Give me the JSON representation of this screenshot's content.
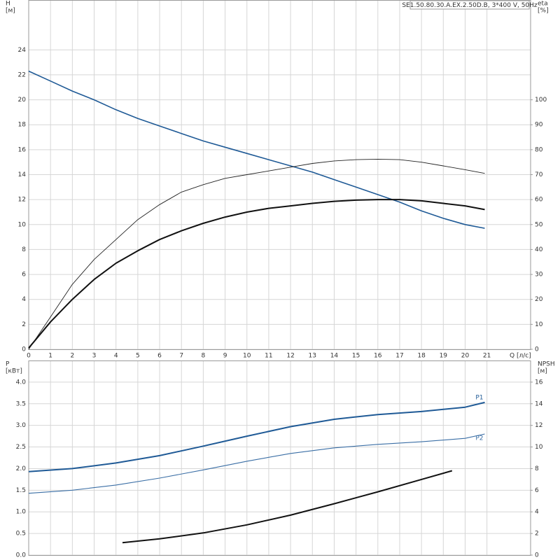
{
  "chart_data": [
    {
      "type": "line",
      "annotation": "SE1.50.80.30.A.EX.2.50D.B, 3*400 V, 50Hz",
      "y_label": "H",
      "y_unit": "[м]",
      "y2_label": "eta",
      "y2_unit": "[%]",
      "x_label": "Q [л/с]",
      "xlim": [
        0,
        23
      ],
      "xticks": [
        0,
        1,
        2,
        3,
        4,
        5,
        6,
        7,
        8,
        9,
        10,
        11,
        12,
        13,
        14,
        15,
        16,
        17,
        18,
        19,
        20,
        21
      ],
      "ylim": [
        0,
        28
      ],
      "yticks": [
        0,
        2,
        4,
        6,
        8,
        10,
        12,
        14,
        16,
        18,
        20,
        22,
        24
      ],
      "y2lim": [
        0,
        140
      ],
      "y2ticks": [
        0,
        10,
        20,
        30,
        40,
        50,
        60,
        70,
        80,
        90,
        100
      ],
      "grid": true,
      "series": [
        {
          "color": "#1f5a96",
          "width": 1.6,
          "x": [
            0,
            1,
            2,
            3,
            4,
            5,
            6,
            7,
            8,
            9,
            10,
            11,
            12,
            13,
            14,
            15,
            16,
            17,
            18,
            19,
            20,
            20.9
          ],
          "values": [
            22.3,
            21.5,
            20.7,
            20.0,
            19.2,
            18.5,
            17.9,
            17.3,
            16.7,
            16.2,
            15.7,
            15.2,
            14.7,
            14.2,
            13.6,
            13.0,
            12.4,
            11.8,
            11.1,
            10.5,
            10.0,
            9.7
          ]
        },
        {
          "color": "#222222",
          "width": 0.9,
          "axis": "y2",
          "x": [
            0,
            1,
            2,
            3,
            4,
            5,
            6,
            7,
            8,
            9,
            10,
            11,
            12,
            13,
            14,
            15,
            16,
            17,
            18,
            19,
            20,
            20.9
          ],
          "values": [
            0,
            13,
            26,
            36,
            44,
            52,
            58,
            63,
            66,
            68.5,
            70,
            71.5,
            73,
            74.5,
            75.5,
            76,
            76.2,
            76,
            75,
            73.5,
            72,
            70.5
          ]
        },
        {
          "color": "#111111",
          "width": 2,
          "axis": "y2",
          "x": [
            0,
            1,
            2,
            3,
            4,
            5,
            6,
            7,
            8,
            9,
            10,
            11,
            12,
            13,
            14,
            15,
            16,
            17,
            18,
            19,
            20,
            20.9
          ],
          "values": [
            0.5,
            11,
            20,
            28,
            34.5,
            39.5,
            44,
            47.5,
            50.5,
            53,
            55,
            56.5,
            57.5,
            58.5,
            59.3,
            59.8,
            60,
            60,
            59.5,
            58.5,
            57.5,
            56
          ]
        }
      ]
    },
    {
      "type": "line",
      "y_label": "P",
      "y_unit": "[кВт]",
      "y2_label": "NPSH",
      "y2_unit": "[м]",
      "xlim": [
        0,
        23
      ],
      "ylim": [
        0,
        4.5
      ],
      "yticks": [
        {
          "value": 0,
          "label": "0.0"
        },
        0.5,
        {
          "value": 1,
          "label": "1.0"
        },
        1.5,
        {
          "value": 2,
          "label": "2.0"
        },
        2.5,
        {
          "value": 3,
          "label": "3.0"
        },
        3.5,
        {
          "value": 4,
          "label": "4.0"
        }
      ],
      "y2lim": [
        0,
        18
      ],
      "y2ticks": [
        0,
        2,
        4,
        6,
        8,
        10,
        12,
        14,
        16
      ],
      "grid": true,
      "series": [
        {
          "name": "P1",
          "color": "#1f5a96",
          "width": 2,
          "x": [
            0,
            2,
            4,
            6,
            8,
            10,
            12,
            14,
            16,
            18,
            20,
            20.9
          ],
          "values": [
            1.93,
            2.0,
            2.13,
            2.3,
            2.52,
            2.75,
            2.97,
            3.14,
            3.25,
            3.32,
            3.42,
            3.53
          ]
        },
        {
          "name": "P2",
          "color": "#3a6ea5",
          "width": 1.1,
          "x": [
            0,
            2,
            4,
            6,
            8,
            10,
            12,
            14,
            16,
            18,
            20,
            20.9
          ],
          "values": [
            1.43,
            1.5,
            1.62,
            1.78,
            1.97,
            2.17,
            2.35,
            2.48,
            2.56,
            2.62,
            2.7,
            2.8
          ]
        },
        {
          "color": "#111111",
          "width": 2,
          "axis": "y2",
          "x": [
            4.3,
            6,
            8,
            10,
            12,
            14,
            16,
            18,
            19.4
          ],
          "values": [
            1.15,
            1.5,
            2.05,
            2.8,
            3.7,
            4.75,
            5.85,
            7.0,
            7.8
          ]
        }
      ]
    }
  ]
}
